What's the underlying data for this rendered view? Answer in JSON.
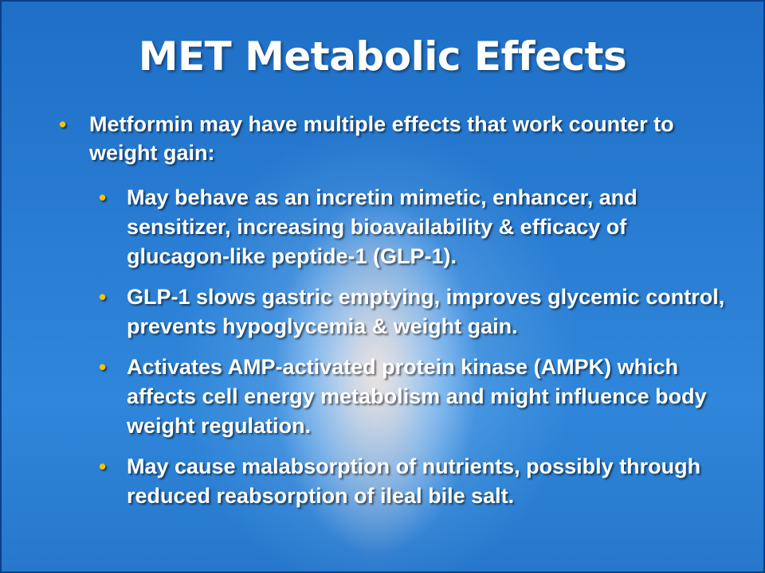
{
  "slide": {
    "title": "MET Metabolic Effects",
    "bullet_glyph": "•",
    "bullet_color": "#f2c400",
    "main_bullet": "Metformin may have multiple effects that work counter to weight gain:",
    "sub_bullets": [
      "May behave as an incretin mimetic, enhancer, and sensitizer, increasing bioavailability & efficacy of glucagon-like peptide-1 (GLP-1).",
      "GLP-1 slows gastric emptying, improves glycemic control, prevents hypoglycemia & weight gain.",
      "Activates AMP-activated protein kinase (AMPK) which affects cell energy metabolism and might influence body weight regulation.",
      "May cause malabsorption of nutrients, possibly through reduced reabsorption of ileal bile salt."
    ]
  }
}
